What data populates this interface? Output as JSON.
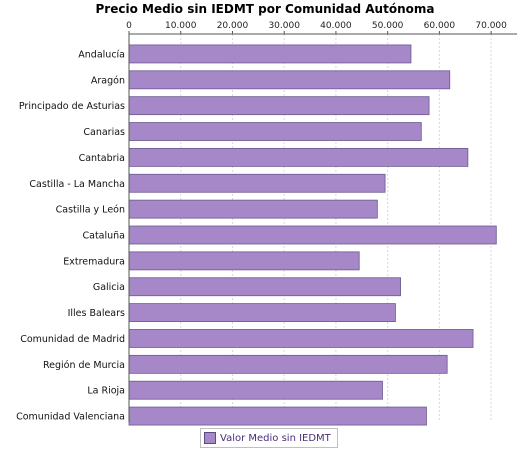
{
  "chart_data": {
    "type": "bar",
    "orientation": "horizontal",
    "title": "Precio Medio sin IEDMT por Comunidad Autónoma",
    "xlim": [
      0,
      75000
    ],
    "x_ticks": [
      "0",
      "10.000",
      "20.000",
      "30.000",
      "40.000",
      "50.000",
      "60.000",
      "70.000"
    ],
    "x_tick_values": [
      0,
      10000,
      20000,
      30000,
      40000,
      50000,
      60000,
      70000
    ],
    "x_axis_position": "top",
    "grid": true,
    "legend_position": "bottom",
    "categories": [
      "Andalucía",
      "Aragón",
      "Principado de Asturias",
      "Canarias",
      "Cantabria",
      "Castilla - La Mancha",
      "Castilla y León",
      "Cataluña",
      "Extremadura",
      "Galicia",
      "Illes Balears",
      "Comunidad de Madrid",
      "Región de Murcia",
      "La Rioja",
      "Comunidad Valenciana"
    ],
    "series": [
      {
        "name": "Valor Medio sin IEDMT",
        "color": "#a687c8",
        "values": [
          54500,
          62000,
          58000,
          56500,
          65500,
          49500,
          48000,
          71000,
          44500,
          52500,
          51500,
          66500,
          61500,
          49000,
          57500
        ]
      }
    ]
  },
  "legend": {
    "label": "Valor Medio sin IEDMT"
  },
  "colors": {
    "bar_fill": "#a687c8",
    "bar_stroke": "#6a5a8f",
    "grid": "#d8d8d8",
    "legend_text": "#4b2e7a"
  }
}
